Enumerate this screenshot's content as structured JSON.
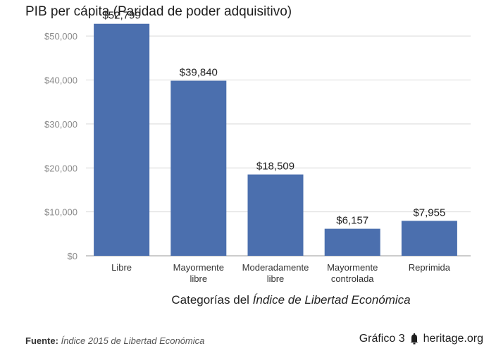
{
  "chart_data": {
    "type": "bar",
    "title": "PIB per cápita (Paridad de poder adquisitivo)",
    "xlabel_parts": [
      "Categorías del ",
      "Índice de Libertad Económica"
    ],
    "categories": [
      [
        "Libre"
      ],
      [
        "Mayormente",
        "libre"
      ],
      [
        "Moderadamente",
        "libre"
      ],
      [
        "Mayormente",
        "controlada"
      ],
      [
        "Reprimida"
      ]
    ],
    "values": [
      52799,
      39840,
      18509,
      6157,
      7955
    ],
    "value_labels": [
      "$52,799",
      "$39,840",
      "$18,509",
      "$6,157",
      "$7,955"
    ],
    "yticks": [
      0,
      10000,
      20000,
      30000,
      40000,
      50000
    ],
    "ytick_labels": [
      "$0",
      "$10,000",
      "$20,000",
      "$30,000",
      "$40,000",
      "$50,000"
    ],
    "ylim": [
      0,
      55000
    ],
    "grid": true,
    "bar_color": "#4b6fae"
  },
  "footer": {
    "source_label": "Fuente:",
    "source_text": "Índice 2015 de Libertad Económica",
    "figure_label": "Gráfico 3",
    "site": "heritage.org",
    "icon": "bell-icon"
  }
}
